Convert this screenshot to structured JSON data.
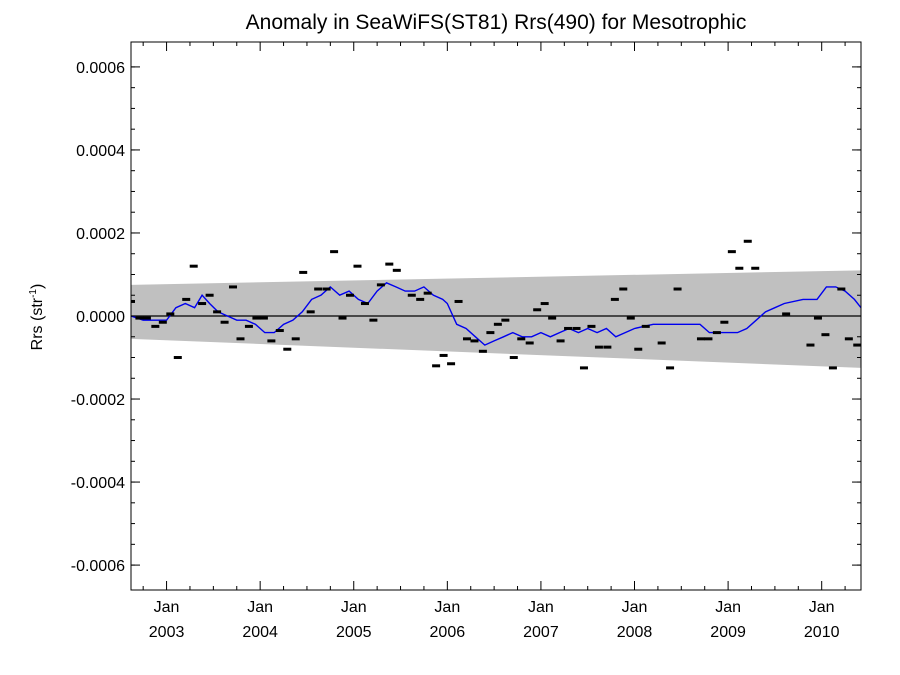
{
  "chart_data": {
    "type": "line",
    "title": "Anomaly in SeaWiFS(ST81) Rrs(490) for Mesotrophic",
    "ylabel": "Rrs (str",
    "ylabel_sup": "-1",
    "ylabel_end": ")",
    "xlim": [
      2002.62,
      2010.42
    ],
    "ylim": [
      -0.00066,
      0.00066
    ],
    "yticks": [
      -0.0006,
      -0.0004,
      -0.0002,
      0.0,
      0.0002,
      0.0004,
      0.0006
    ],
    "ytick_labels": [
      "-0.0006",
      "-0.0004",
      "-0.0002",
      "0.0000",
      "0.0002",
      "0.0004",
      "0.0006"
    ],
    "xticks": [
      2003.0,
      2004.0,
      2005.0,
      2006.0,
      2007.0,
      2008.0,
      2009.0,
      2010.0
    ],
    "xtick_month": "Jan",
    "xtick_years": [
      "2003",
      "2004",
      "2005",
      "2006",
      "2007",
      "2008",
      "2009",
      "2010"
    ],
    "grid": false,
    "colors": {
      "band": "#c0c0c0",
      "smoothed": "#0000ee",
      "points": "#000000",
      "zero_line": "#000000"
    },
    "band": {
      "name": "",
      "x": [
        2002.62,
        2010.42
      ],
      "upper": [
        7.5e-05,
        0.00011
      ],
      "lower": [
        -5.5e-05,
        -0.000125
      ]
    },
    "series": [
      {
        "style": "dash-markers",
        "x": [
          2002.62,
          2002.71,
          2002.79,
          2002.88,
          2002.96,
          2003.04,
          2003.12,
          2003.21,
          2003.29,
          2003.38,
          2003.46,
          2003.54,
          2003.62,
          2003.71,
          2003.79,
          2003.88,
          2003.96,
          2004.04,
          2004.12,
          2004.21,
          2004.29,
          2004.38,
          2004.46,
          2004.54,
          2004.62,
          2004.71,
          2004.79,
          2004.88,
          2004.96,
          2005.04,
          2005.12,
          2005.21,
          2005.29,
          2005.38,
          2005.46,
          2005.62,
          2005.71,
          2005.79,
          2005.88,
          2005.96,
          2006.04,
          2006.12,
          2006.21,
          2006.29,
          2006.38,
          2006.46,
          2006.54,
          2006.62,
          2006.71,
          2006.79,
          2006.88,
          2006.96,
          2007.04,
          2007.12,
          2007.21,
          2007.29,
          2007.38,
          2007.46,
          2007.54,
          2007.62,
          2007.71,
          2007.79,
          2007.88,
          2007.96,
          2008.04,
          2008.12,
          2008.29,
          2008.38,
          2008.46,
          2008.71,
          2008.79,
          2008.88,
          2008.96,
          2009.04,
          2009.12,
          2009.21,
          2009.29,
          2009.62,
          2009.88,
          2009.96,
          2010.04,
          2010.12,
          2010.21,
          2010.29,
          2010.38
        ],
        "y": [
          3.5e-05,
          -5e-06,
          -5e-06,
          -2.5e-05,
          -1.5e-05,
          5e-06,
          -0.0001,
          4e-05,
          0.00012,
          3e-05,
          5e-05,
          1e-05,
          -1.5e-05,
          7e-05,
          -5.5e-05,
          -2.5e-05,
          -5e-06,
          -5e-06,
          -6e-05,
          -3.5e-05,
          -8e-05,
          -5.5e-05,
          0.000105,
          1e-05,
          6.5e-05,
          6.5e-05,
          0.000155,
          -5e-06,
          5e-05,
          0.00012,
          3e-05,
          -1e-05,
          7.5e-05,
          0.000125,
          0.00011,
          5e-05,
          4e-05,
          5.5e-05,
          -0.00012,
          -9.5e-05,
          -0.000115,
          3.5e-05,
          -5.5e-05,
          -6e-05,
          -8.5e-05,
          -4e-05,
          -2e-05,
          -1e-05,
          -0.0001,
          -5.5e-05,
          -6.5e-05,
          1.5e-05,
          3e-05,
          -5e-06,
          -6e-05,
          -3e-05,
          -3e-05,
          -0.000125,
          -2.5e-05,
          -7.5e-05,
          -7.5e-05,
          4e-05,
          6.5e-05,
          -5e-06,
          -8e-05,
          -2.5e-05,
          -6.5e-05,
          -0.000125,
          6.5e-05,
          -5.5e-05,
          -5.5e-05,
          -4e-05,
          -1.5e-05,
          0.000155,
          0.000115,
          0.00018,
          0.000115,
          5e-06,
          -7e-05,
          -5e-06,
          -4.5e-05,
          -0.000125,
          6.5e-05,
          -5.5e-05,
          -7e-05
        ]
      },
      {
        "style": "line",
        "x": [
          2002.62,
          2002.75,
          2002.88,
          2003.0,
          2003.1,
          2003.2,
          2003.3,
          2003.38,
          2003.46,
          2003.55,
          2003.65,
          2003.75,
          2003.85,
          2003.95,
          2004.05,
          2004.15,
          2004.25,
          2004.35,
          2004.45,
          2004.55,
          2004.65,
          2004.75,
          2004.85,
          2004.95,
          2005.05,
          2005.15,
          2005.25,
          2005.35,
          2005.45,
          2005.55,
          2005.65,
          2005.75,
          2005.85,
          2005.95,
          2006.0,
          2006.1,
          2006.2,
          2006.3,
          2006.4,
          2006.5,
          2006.6,
          2006.7,
          2006.8,
          2006.9,
          2007.0,
          2007.1,
          2007.2,
          2007.3,
          2007.4,
          2007.5,
          2007.6,
          2007.7,
          2007.8,
          2007.9,
          2008.0,
          2008.2,
          2008.4,
          2008.6,
          2008.7,
          2008.8,
          2008.9,
          2009.0,
          2009.1,
          2009.2,
          2009.3,
          2009.4,
          2009.5,
          2009.6,
          2009.8,
          2009.95,
          2010.05,
          2010.15,
          2010.25,
          2010.35,
          2010.42
        ],
        "y": [
          0.0,
          -1e-05,
          -1e-05,
          -1e-05,
          2e-05,
          3e-05,
          2e-05,
          5e-05,
          3e-05,
          1e-05,
          0.0,
          -1e-05,
          -1e-05,
          -2e-05,
          -4e-05,
          -4e-05,
          -2e-05,
          -1e-05,
          1e-05,
          4e-05,
          5e-05,
          7e-05,
          5e-05,
          6e-05,
          4e-05,
          3e-05,
          6e-05,
          8e-05,
          7e-05,
          6e-05,
          6e-05,
          7e-05,
          5e-05,
          4e-05,
          3e-05,
          -2e-05,
          -3e-05,
          -5e-05,
          -7e-05,
          -6e-05,
          -5e-05,
          -4e-05,
          -5e-05,
          -5e-05,
          -4e-05,
          -5e-05,
          -4e-05,
          -3e-05,
          -4e-05,
          -3e-05,
          -4e-05,
          -3e-05,
          -5e-05,
          -4e-05,
          -3e-05,
          -2e-05,
          -2e-05,
          -2e-05,
          -2e-05,
          -4e-05,
          -4e-05,
          -4e-05,
          -4e-05,
          -3e-05,
          -1e-05,
          1e-05,
          2e-05,
          3e-05,
          4e-05,
          4e-05,
          7e-05,
          7e-05,
          6e-05,
          4e-05,
          2e-05
        ]
      }
    ]
  }
}
